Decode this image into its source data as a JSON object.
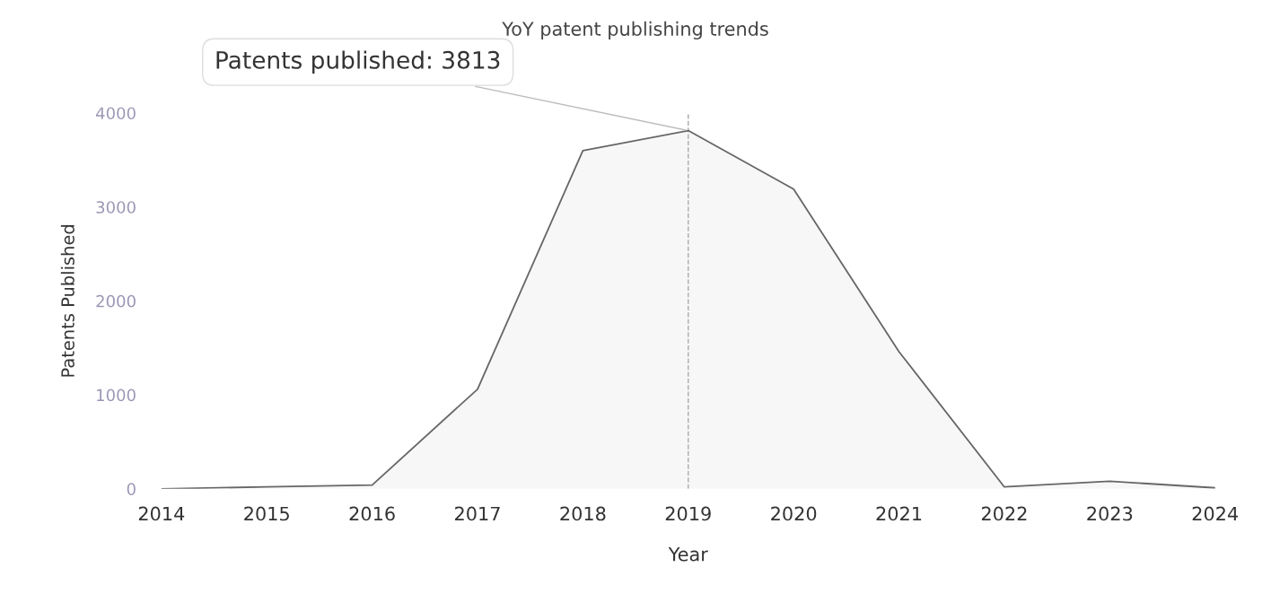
{
  "chart_data": {
    "type": "area",
    "title": "YoY patent publishing trends",
    "xlabel": "Year",
    "ylabel": "Patents Published",
    "x": [
      2014,
      2015,
      2016,
      2017,
      2018,
      2019,
      2020,
      2021,
      2022,
      2023,
      2024
    ],
    "series": [
      {
        "color": "#666666",
        "values": [
          0,
          20,
          40,
          1060,
          3600,
          3813,
          3190,
          1460,
          20,
          80,
          10
        ]
      }
    ],
    "xlim": [
      2014,
      2024
    ],
    "ylim": [
      0,
      4000
    ],
    "xticks": [
      2014,
      2015,
      2016,
      2017,
      2018,
      2019,
      2020,
      2021,
      2022,
      2023,
      2024
    ],
    "yticks": [
      0,
      1000,
      2000,
      3000,
      4000
    ],
    "ref_lines": [
      {
        "axis": "x",
        "value": 2019,
        "label": null,
        "color": "#aaaaaa",
        "line_style": "dashed"
      }
    ],
    "annotations": [
      {
        "text": "Patents published: 3813",
        "x": 2019,
        "y": 3813
      }
    ],
    "grid": false,
    "legend": false
  }
}
